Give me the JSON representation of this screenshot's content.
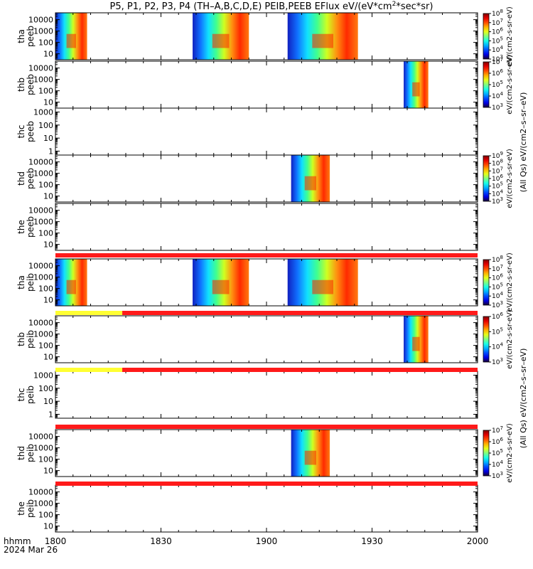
{
  "title": {
    "main": "P5, P1, P2, P3, P4 (TH–A,B,C,D,E) PEIB,PEEB EFlux eV/(eV*cm",
    "sup": "2",
    "end": "*sec*sr)"
  },
  "x_axis": {
    "tick_labels": [
      "1800",
      "1830",
      "1900",
      "1930",
      "2000"
    ],
    "row1_label": "hhmm",
    "row2_label": "2024 Mar 26"
  },
  "colors": {
    "bar_red": "#ff1a1a",
    "bar_yellow": "#ffff33",
    "frame": "#000000"
  },
  "chart_data": {
    "type": "heatmap",
    "x_unit": "hhmm",
    "x_range_minutes": [
      0,
      120
    ],
    "y_scale": "log",
    "panels": [
      {
        "probe": "tha",
        "product": "peeb",
        "ylabel_top": "tha",
        "ylabel_bottom": "peeb",
        "ylim": [
          3,
          40000
        ],
        "yticks": [
          "10000",
          "1000",
          "100",
          "10"
        ],
        "segments": [
          [
            0,
            9
          ],
          [
            39,
            55
          ],
          [
            66,
            86
          ]
        ],
        "colorbar": {
          "min_exp": 3,
          "max_exp": 8,
          "label": "eV/(cm2-s-sr-eV)"
        }
      },
      {
        "probe": "thb",
        "product": "peeb",
        "ylabel_top": "thb",
        "ylabel_bottom": "peeb",
        "ylim": [
          3,
          40000
        ],
        "yticks": [
          "10000",
          "1000",
          "100",
          "10"
        ],
        "segments": [
          [
            99,
            106
          ]
        ],
        "colorbar": {
          "min_exp": 3,
          "max_exp": 7,
          "label": "eV/(cm2-s-sr-eV)"
        }
      },
      {
        "probe": "thc",
        "product": "peeb",
        "ylabel_top": "thc",
        "ylabel_bottom": "peeb",
        "ylim": [
          0.5,
          2000
        ],
        "yticks": [
          "1000",
          "100",
          "10",
          "1"
        ],
        "segments": [],
        "colorbar": null
      },
      {
        "probe": "thd",
        "product": "peeb",
        "ylabel_top": "thd",
        "ylabel_bottom": "peeb",
        "ylim": [
          3,
          40000
        ],
        "yticks": [
          "10000",
          "1000",
          "100",
          "10"
        ],
        "segments": [
          [
            67,
            78
          ]
        ],
        "colorbar": {
          "min_exp": 3,
          "max_exp": 9,
          "label": "eV/(cm2-s-sr-eV)"
        }
      },
      {
        "probe": "the",
        "product": "peeb",
        "ylabel_top": "the",
        "ylabel_bottom": "peeb",
        "ylim": [
          3,
          40000
        ],
        "yticks": [
          "10000",
          "1000",
          "100",
          "10"
        ],
        "segments": [],
        "colorbar": null
      },
      {
        "probe": "tha",
        "product": "peib",
        "ylabel_top": "tha",
        "ylabel_bottom": "peib",
        "ylim": [
          3,
          40000
        ],
        "yticks": [
          "10000",
          "1000",
          "100",
          "10"
        ],
        "segments": [
          [
            0,
            9
          ],
          [
            39,
            55
          ],
          [
            66,
            86
          ]
        ],
        "colorbar": {
          "min_exp": 3,
          "max_exp": 8,
          "label": "eV/(cm2-s-sr-eV)"
        }
      },
      {
        "probe": "thb",
        "product": "peib",
        "ylabel_top": "thb",
        "ylabel_bottom": "peib",
        "ylim": [
          3,
          40000
        ],
        "yticks": [
          "10000",
          "1000",
          "100",
          "10"
        ],
        "segments": [
          [
            99,
            106
          ]
        ],
        "colorbar": {
          "min_exp": 3,
          "max_exp": 6,
          "label": "eV/(cm2-s-sr-eV)"
        }
      },
      {
        "probe": "thc",
        "product": "peib",
        "ylabel_top": "thc",
        "ylabel_bottom": "peib",
        "ylim": [
          0.5,
          2000
        ],
        "yticks": [
          "1000",
          "100",
          "10",
          "1"
        ],
        "segments": [],
        "colorbar": null
      },
      {
        "probe": "thd",
        "product": "peib",
        "ylabel_top": "thd",
        "ylabel_bottom": "peib",
        "ylim": [
          3,
          40000
        ],
        "yticks": [
          "10000",
          "1000",
          "100",
          "10"
        ],
        "segments": [
          [
            67,
            78
          ]
        ],
        "colorbar": {
          "min_exp": 3,
          "max_exp": 7,
          "label": "eV/(cm2-s-sr-eV)"
        }
      },
      {
        "probe": "the",
        "product": "peib",
        "ylabel_top": "the",
        "ylabel_bottom": "peib",
        "ylim": [
          3,
          40000
        ],
        "yticks": [
          "10000",
          "1000",
          "100",
          "10"
        ],
        "segments": [],
        "colorbar": null
      }
    ],
    "status_bars": [
      {
        "after_panel": 4,
        "segments": [
          {
            "x0": 0,
            "x1": 120,
            "color": "red"
          }
        ]
      },
      {
        "after_panel": 5,
        "segments": [
          {
            "x0": 0,
            "x1": 19,
            "color": "yellow"
          },
          {
            "x0": 19,
            "x1": 120,
            "color": "red"
          }
        ]
      },
      {
        "after_panel": 6,
        "segments": [
          {
            "x0": 0,
            "x1": 19,
            "color": "yellow"
          },
          {
            "x0": 19,
            "x1": 120,
            "color": "red"
          }
        ]
      },
      {
        "after_panel": 7,
        "segments": [
          {
            "x0": 0,
            "x1": 120,
            "color": "red"
          }
        ]
      },
      {
        "after_panel": 8,
        "segments": [
          {
            "x0": 0,
            "x1": 120,
            "color": "red"
          }
        ]
      }
    ],
    "colorbar_label_full": "(All Qs) eV/(cm2–s–sr–eV)",
    "colorbar_label_left": "eV/(cm2–s–sr–eV)",
    "colorbar_label_right": "(All Qs)"
  }
}
